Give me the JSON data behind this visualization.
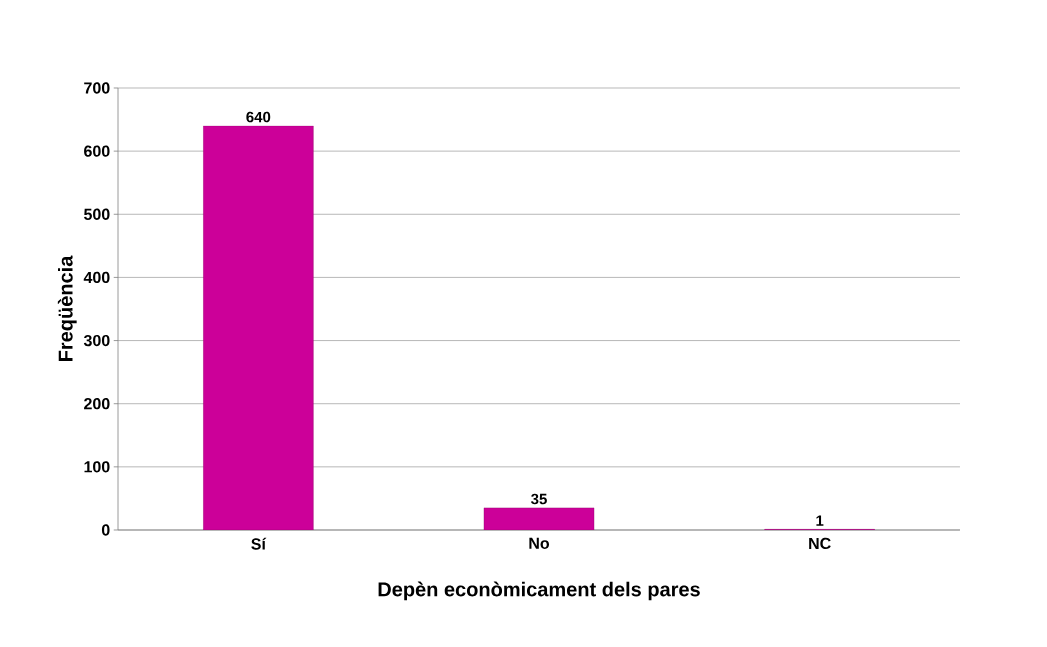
{
  "chart_data": {
    "type": "bar",
    "xlabel": "Depèn econòmicament dels pares",
    "ylabel": "Freqüència",
    "categories": [
      "Sí",
      "No",
      "NC"
    ],
    "values": [
      640,
      35,
      1
    ],
    "color": "#cc0099",
    "ylim": [
      0,
      700
    ],
    "yticks": [
      0,
      100,
      200,
      300,
      400,
      500,
      600,
      700
    ],
    "grid": "y",
    "data_labels": true
  }
}
